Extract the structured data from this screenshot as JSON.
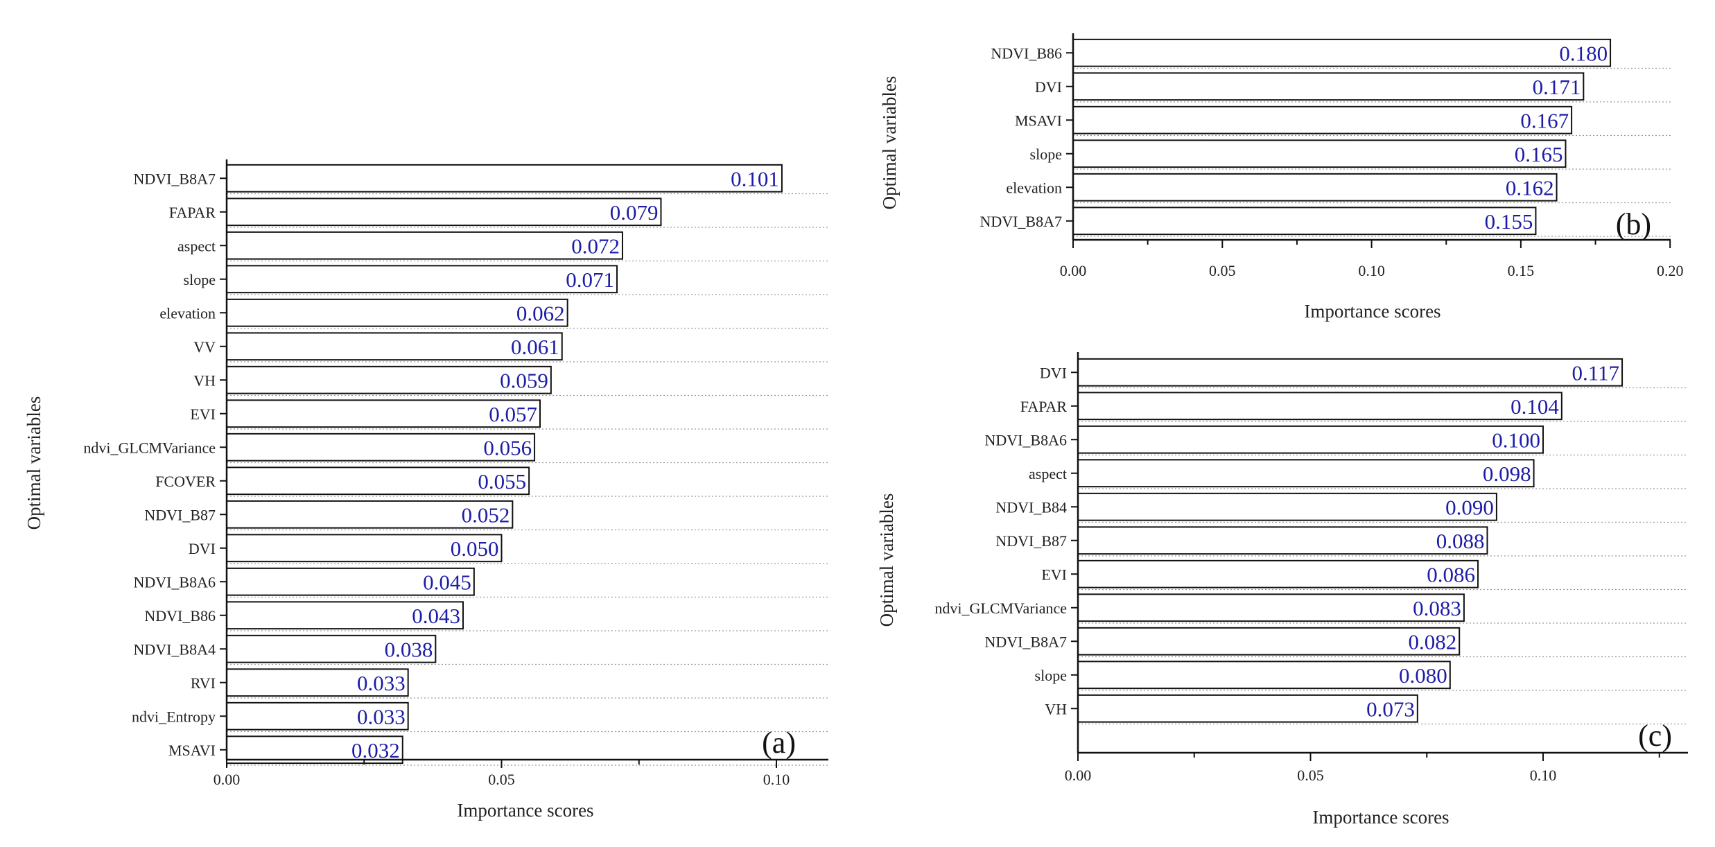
{
  "chart_data": [
    {
      "type": "bar",
      "orientation": "horizontal",
      "panel_label": "(a)",
      "xlabel": "Importance scores",
      "ylabel": "Optimal variables",
      "xlim": [
        0,
        0.11
      ],
      "xticks": [
        "0.00",
        "0.05",
        "0.10"
      ],
      "categories": [
        "NDVI_B8A7",
        "FAPAR",
        "aspect",
        "slope",
        "elevation",
        "VV",
        "VH",
        "EVI",
        "ndvi_GLCMVariance",
        "FCOVER",
        "NDVI_B87",
        "DVI",
        "NDVI_B8A6",
        "NDVI_B86",
        "NDVI_B8A4",
        "RVI",
        "ndvi_Entropy",
        "MSAVI"
      ],
      "values": [
        0.101,
        0.079,
        0.072,
        0.071,
        0.062,
        0.061,
        0.059,
        0.057,
        0.056,
        0.055,
        0.052,
        0.05,
        0.045,
        0.043,
        0.038,
        0.033,
        0.033,
        0.032
      ],
      "value_labels": [
        "0.101",
        "0.079",
        "0.072",
        "0.071",
        "0.062",
        "0.061",
        "0.059",
        "0.057",
        "0.056",
        "0.055",
        "0.052",
        "0.050",
        "0.045",
        "0.043",
        "0.038",
        "0.033",
        "0.033",
        "0.032"
      ]
    },
    {
      "type": "bar",
      "orientation": "horizontal",
      "panel_label": "(b)",
      "xlabel": "Importance scores",
      "ylabel": "Optimal variables",
      "xlim": [
        0,
        0.2
      ],
      "xticks": [
        "0.00",
        "0.05",
        "0.10",
        "0.15",
        "0.20"
      ],
      "categories": [
        "NDVI_B86",
        "DVI",
        "MSAVI",
        "slope",
        "elevation",
        "NDVI_B8A7"
      ],
      "values": [
        0.18,
        0.171,
        0.167,
        0.165,
        0.162,
        0.155
      ],
      "value_labels": [
        "0.180",
        "0.171",
        "0.167",
        "0.165",
        "0.162",
        "0.155"
      ]
    },
    {
      "type": "bar",
      "orientation": "horizontal",
      "panel_label": "(c)",
      "xlabel": "Importance scores",
      "ylabel": "Optimal variables",
      "xlim": [
        0,
        0.13
      ],
      "xticks": [
        "0.00",
        "0.05",
        "0.10"
      ],
      "categories": [
        "DVI",
        "FAPAR",
        "NDVI_B8A6",
        "aspect",
        "NDVI_B84",
        "NDVI_B87",
        "EVI",
        "ndvi_GLCMVariance",
        "NDVI_B8A7",
        "slope",
        "VH"
      ],
      "values": [
        0.117,
        0.104,
        0.1,
        0.098,
        0.09,
        0.088,
        0.086,
        0.083,
        0.082,
        0.08,
        0.073
      ],
      "value_labels": [
        "0.117",
        "0.104",
        "0.100",
        "0.098",
        "0.090",
        "0.088",
        "0.086",
        "0.083",
        "0.082",
        "0.080",
        "0.073"
      ]
    }
  ]
}
